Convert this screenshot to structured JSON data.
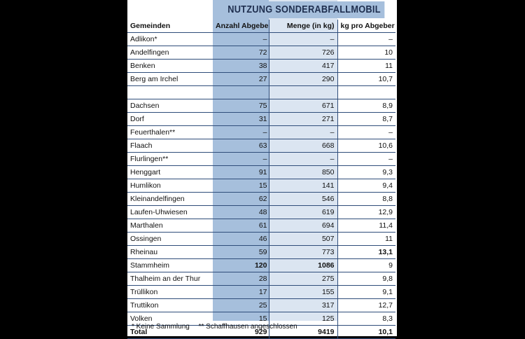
{
  "title": "NUTZUNG SONDERABFALLMOBIL",
  "headers": [
    "Gemeinden",
    "Anzahl Abgeber",
    "Menge (in kg)",
    "kg pro Abgeber"
  ],
  "rows": [
    {
      "name": "Adlikon*",
      "count": "–",
      "kg": "–",
      "per": "–"
    },
    {
      "name": "Andelfingen",
      "count": "72",
      "kg": "726",
      "per": "10"
    },
    {
      "name": "Benken",
      "count": "38",
      "kg": "417",
      "per": "11"
    },
    {
      "name": "Berg am Irchel",
      "count": "27",
      "kg": "290",
      "per": "10,7"
    },
    {
      "name": "",
      "count": "",
      "kg": "",
      "per": "",
      "gap": true
    },
    {
      "name": "Dachsen",
      "count": "75",
      "kg": "671",
      "per": "8,9"
    },
    {
      "name": "Dorf",
      "count": "31",
      "kg": "271",
      "per": "8,7"
    },
    {
      "name": "Feuerthalen**",
      "count": "–",
      "kg": "–",
      "per": "–"
    },
    {
      "name": "Flaach",
      "count": "63",
      "kg": "668",
      "per": "10,6"
    },
    {
      "name": "Flurlingen**",
      "count": "–",
      "kg": "–",
      "per": "–"
    },
    {
      "name": "Henggart",
      "count": "91",
      "kg": "850",
      "per": "9,3"
    },
    {
      "name": "Humlikon",
      "count": "15",
      "kg": "141",
      "per": "9,4"
    },
    {
      "name": "Kleinandelfingen",
      "count": "62",
      "kg": "546",
      "per": "8,8"
    },
    {
      "name": "Laufen-Uhwiesen",
      "count": "48",
      "kg": "619",
      "per": "12,9"
    },
    {
      "name": "Marthalen",
      "count": "61",
      "kg": "694",
      "per": "11,4"
    },
    {
      "name": "Ossingen",
      "count": "46",
      "kg": "507",
      "per": "11"
    },
    {
      "name": "Rheinau",
      "count": "59",
      "kg": "773",
      "per": "13,1",
      "bold": [
        "per"
      ]
    },
    {
      "name": "Stammheim",
      "count": "120",
      "kg": "1086",
      "per": "9",
      "bold": [
        "count",
        "kg"
      ]
    },
    {
      "name": "Thalheim an der Thur",
      "count": "28",
      "kg": "275",
      "per": "9,8"
    },
    {
      "name": "Trüllikon",
      "count": "17",
      "kg": "155",
      "per": "9,1"
    },
    {
      "name": "Truttikon",
      "count": "25",
      "kg": "317",
      "per": "12,7"
    },
    {
      "name": "Volken",
      "count": "15",
      "kg": "125",
      "per": "8,3"
    }
  ],
  "total": {
    "name": "Total",
    "count": "929",
    "kg": "9419",
    "per": "10,1"
  },
  "footnotes": [
    "* Keine Sammlung",
    "** Schaffhausen angeschlossen"
  ]
}
